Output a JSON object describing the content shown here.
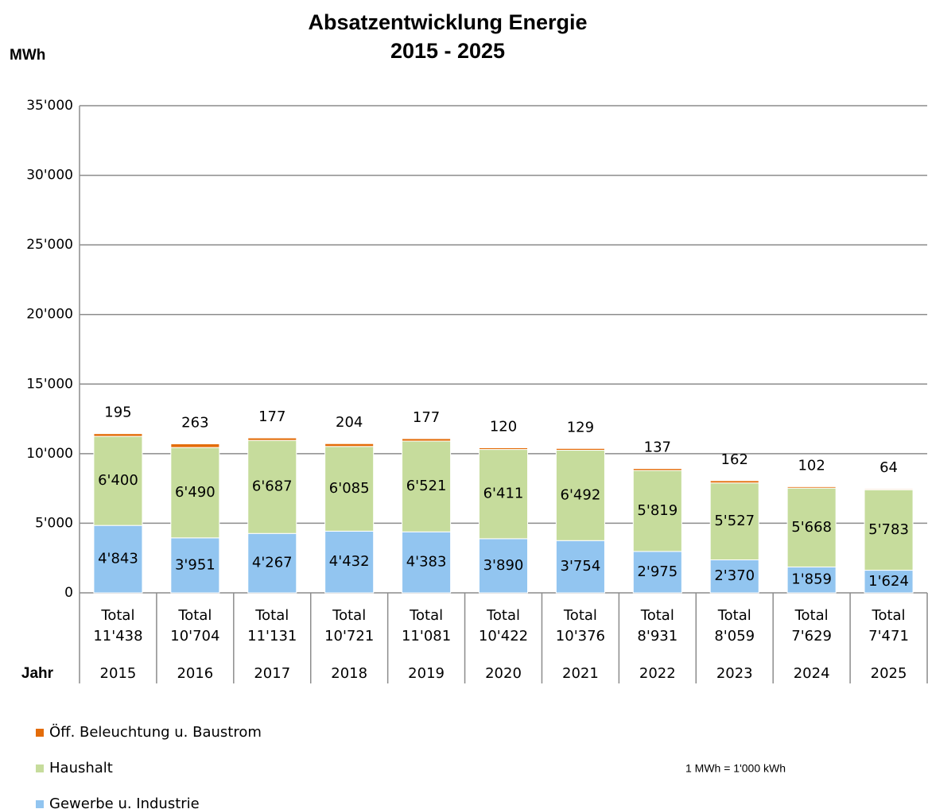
{
  "chart_data": {
    "type": "stacked_bar",
    "title": "Absatzentwicklung Energie",
    "subtitle": "2015 - 2025",
    "y_label": "MWh",
    "x_label": "Jahr",
    "annotation": "1 MWh = 1'000 kWh",
    "categories": [
      "2015",
      "2016",
      "2017",
      "2018",
      "2019",
      "2020",
      "2021",
      "2022",
      "2023",
      "2024",
      "2025"
    ],
    "series": [
      {
        "name": "Gewerbe u. Industrie",
        "color": "#92c5f0",
        "values": [
          4843,
          3951,
          4267,
          4432,
          4383,
          3890,
          3754,
          2975,
          2370,
          1859,
          1624
        ],
        "value_labels": [
          "4'843",
          "3'951",
          "4'267",
          "4'432",
          "4'383",
          "3'890",
          "3'754",
          "2'975",
          "2'370",
          "1'859",
          "1'624"
        ]
      },
      {
        "name": "Haushalt",
        "color": "#c6dc9c",
        "values": [
          6400,
          6490,
          6687,
          6085,
          6521,
          6411,
          6492,
          5819,
          5527,
          5668,
          5783
        ],
        "value_labels": [
          "6'400",
          "6'490",
          "6'687",
          "6'085",
          "6'521",
          "6'411",
          "6'492",
          "5'819",
          "5'527",
          "5'668",
          "5'783"
        ]
      },
      {
        "name": "Öff. Beleuchtung u. Baustrom",
        "color": "#e36c09",
        "values": [
          195,
          263,
          177,
          204,
          177,
          120,
          129,
          137,
          162,
          102,
          64
        ]
      }
    ],
    "totals": {
      "prefix": "Total",
      "values": [
        11438,
        10704,
        11131,
        10721,
        11081,
        10422,
        10376,
        8931,
        8059,
        7629,
        7471
      ],
      "value_labels": [
        "11'438",
        "10'704",
        "11'131",
        "10'721",
        "11'081",
        "10'422",
        "10'376",
        "8'931",
        "8'059",
        "7'629",
        "7'471"
      ]
    },
    "ylim": [
      0,
      35000
    ],
    "yticks": [
      0,
      {
        "value": 5000,
        "label": "5'000"
      },
      {
        "value": 10000,
        "label": "10'000"
      },
      {
        "value": 15000,
        "label": "15'000"
      },
      {
        "value": 20000,
        "label": "20'000"
      },
      {
        "value": 25000,
        "label": "25'000"
      },
      {
        "value": 30000,
        "label": "30'000"
      },
      {
        "value": 35000,
        "label": "35'000"
      }
    ],
    "grid": true,
    "legend": "bottom-left"
  }
}
